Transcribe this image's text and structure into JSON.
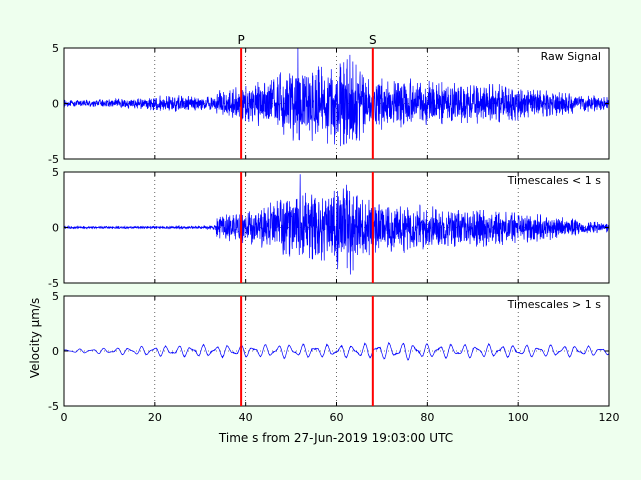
{
  "colors": {
    "background": "#eeffee",
    "panel": "#ffffff",
    "trace": "#0000ff",
    "phase_marker": "#ff0000",
    "axis": "#000000"
  },
  "chart_data": {
    "type": "line",
    "xlabel": "Time s from 27-Jun-2019 19:03:00 UTC",
    "ylabel": "Velocity μm/s",
    "xlim": [
      0,
      120
    ],
    "xticks": [
      0,
      20,
      40,
      60,
      80,
      100,
      120
    ],
    "grid": true,
    "phase_markers": [
      {
        "label": "P",
        "x": 39
      },
      {
        "label": "S",
        "x": 68
      }
    ],
    "panels": [
      {
        "label": "Raw Signal",
        "ylim": [
          -5,
          5
        ],
        "yticks": [
          -5,
          0,
          5
        ],
        "series": [
          {
            "envelope": {
              "t": [
                0,
                5,
                10,
                15,
                20,
                25,
                30,
                33,
                34,
                38,
                42,
                46,
                50,
                55,
                60,
                63,
                66,
                70,
                75,
                80,
                85,
                90,
                95,
                100,
                105,
                110,
                115,
                120
              ],
              "amp": [
                0.3,
                0.35,
                0.4,
                0.5,
                0.7,
                0.8,
                0.6,
                0.8,
                1.4,
                1.5,
                2.0,
                2.5,
                3.5,
                3.6,
                4.0,
                4.6,
                3.2,
                2.6,
                2.4,
                2.2,
                2.0,
                2.0,
                1.9,
                1.6,
                1.4,
                1.1,
                0.8,
                0.6
              ]
            },
            "peak": {
              "t": 51.5,
              "value": 5.0
            }
          }
        ]
      },
      {
        "label": "Timescales < 1 s",
        "ylim": [
          -5,
          5
        ],
        "yticks": [
          -5,
          0,
          5
        ],
        "series": [
          {
            "envelope": {
              "t": [
                0,
                5,
                10,
                15,
                20,
                25,
                30,
                33,
                34,
                38,
                42,
                46,
                50,
                55,
                60,
                63,
                66,
                70,
                75,
                80,
                85,
                90,
                95,
                100,
                105,
                110,
                115,
                120
              ],
              "amp": [
                0.12,
                0.12,
                0.12,
                0.12,
                0.15,
                0.15,
                0.15,
                0.2,
                1.2,
                1.4,
                1.9,
                2.4,
                3.3,
                3.4,
                3.9,
                4.5,
                3.0,
                2.5,
                2.3,
                2.1,
                1.9,
                1.9,
                1.8,
                1.5,
                1.3,
                1.0,
                0.7,
                0.5
              ]
            },
            "peak": {
              "t": 52.0,
              "value": 4.8
            }
          }
        ]
      },
      {
        "label": "Timescales > 1 s",
        "ylim": [
          -5,
          5
        ],
        "yticks": [
          -5,
          0,
          5
        ],
        "series": [
          {
            "envelope": {
              "t": [
                0,
                10,
                20,
                30,
                40,
                50,
                60,
                70,
                75,
                80,
                90,
                100,
                110,
                120
              ],
              "amp": [
                0.15,
                0.3,
                0.5,
                0.6,
                0.6,
                0.7,
                0.6,
                0.8,
                0.9,
                0.7,
                0.7,
                0.6,
                0.6,
                0.4
              ]
            },
            "peak": null
          }
        ]
      }
    ]
  }
}
